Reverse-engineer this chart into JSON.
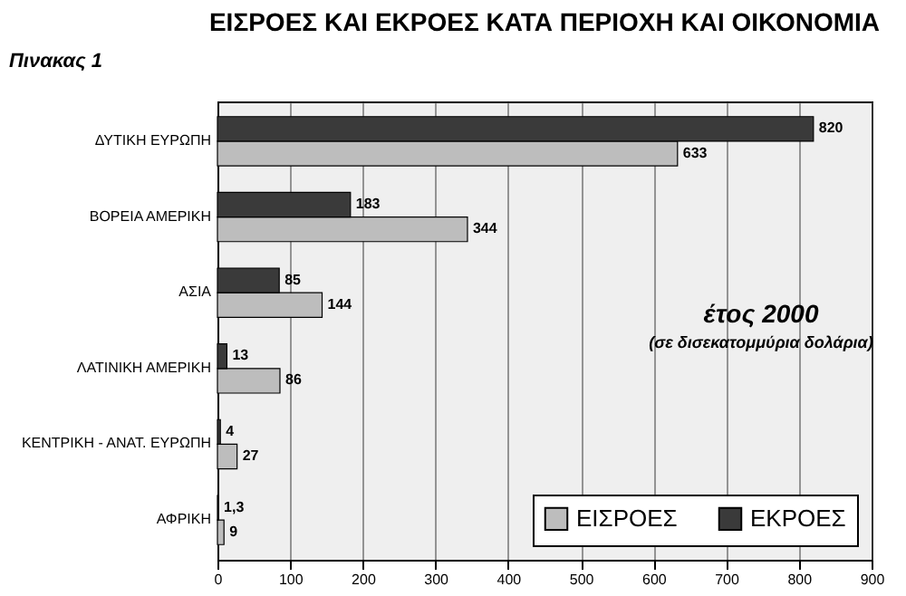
{
  "chart_data": {
    "type": "bar",
    "orientation": "horizontal",
    "title": "ΕΙΣΡΟΕΣ ΚΑΙ ΕΚΡΟΕΣ ΚΑΤΑ ΠΕΡΙΟΧΗ ΚΑΙ ΟΙΚΟΝΟΜΙΑ",
    "categories": [
      "ΔΥΤΙΚΗ ΕΥΡΩΠΗ",
      "ΒΟΡΕΙΑ ΑΜΕΡΙΚΗ",
      "ΑΣΙΑ",
      "ΛΑΤΙΝΙΚΗ ΑΜΕΡΙΚΗ",
      "ΚΕΝΤΡΙΚΗ - ΑΝΑΤ. ΕΥΡΩΠΗ",
      "ΑΦΡΙΚΗ"
    ],
    "series": [
      {
        "name": "ΕΙΣΡΟΕΣ",
        "color": "#bdbdbd",
        "values": [
          633,
          344,
          144,
          86,
          27,
          9
        ],
        "value_labels": [
          "633",
          "344",
          "144",
          "86",
          "27",
          "9"
        ]
      },
      {
        "name": "ΕΚΡΟΕΣ",
        "color": "#3a3a3a",
        "values": [
          820,
          183,
          85,
          13,
          4,
          1.3
        ],
        "value_labels": [
          "820",
          "183",
          "85",
          "13",
          "4",
          "1,3"
        ]
      }
    ],
    "xlim": [
      0,
      900
    ],
    "xticks": [
      0,
      100,
      200,
      300,
      400,
      500,
      600,
      700,
      800,
      900
    ],
    "grid": "x",
    "legend": "bottom right",
    "annotations": [
      "Πινακας 1",
      "έτος 2000",
      "(σε δισεκατομμύρια δολάρια)"
    ]
  }
}
